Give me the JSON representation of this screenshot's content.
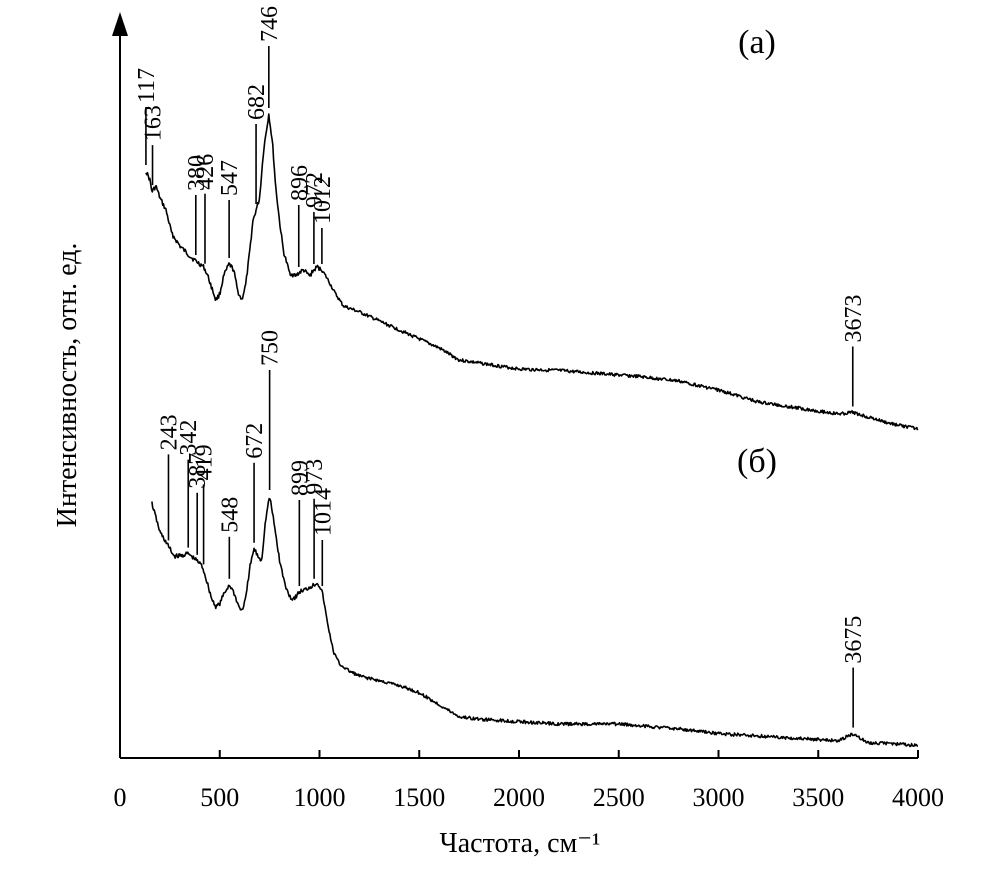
{
  "chart_data": {
    "type": "line",
    "xlabel": "Частота, см⁻¹",
    "ylabel": "Интенсивность, отн. ед.",
    "xlim": [
      0,
      4000
    ],
    "x_ticks": [
      "0",
      "500",
      "1000",
      "1500",
      "2000",
      "2500",
      "3000",
      "3500",
      "4000"
    ],
    "y_tick_labels": false,
    "grid": false,
    "legend": "none",
    "series": [
      {
        "name": "(а)",
        "x": [
          130,
          150,
          160,
          180,
          200,
          230,
          260,
          300,
          330,
          360,
          380,
          400,
          420,
          440,
          460,
          480,
          500,
          520,
          547,
          570,
          590,
          610,
          630,
          650,
          665,
          682,
          700,
          720,
          746,
          765,
          780,
          800,
          820,
          850,
          880,
          896,
          920,
          950,
          972,
          990,
          1012,
          1040,
          1080,
          1120,
          1200,
          1300,
          1400,
          1500,
          1600,
          1700,
          1800,
          1900,
          2000,
          2200,
          2400,
          2600,
          2800,
          3000,
          3200,
          3400,
          3600,
          3673,
          3750,
          3850,
          4000
        ],
        "y": [
          0.93,
          0.9,
          0.86,
          0.88,
          0.84,
          0.8,
          0.72,
          0.68,
          0.66,
          0.64,
          0.63,
          0.62,
          0.61,
          0.58,
          0.54,
          0.5,
          0.52,
          0.58,
          0.62,
          0.6,
          0.53,
          0.5,
          0.55,
          0.66,
          0.76,
          0.8,
          0.84,
          1.0,
          1.12,
          1.02,
          0.88,
          0.76,
          0.66,
          0.59,
          0.58,
          0.59,
          0.6,
          0.58,
          0.6,
          0.61,
          0.6,
          0.57,
          0.52,
          0.48,
          0.46,
          0.43,
          0.4,
          0.37,
          0.34,
          0.3,
          0.29,
          0.28,
          0.27,
          0.265,
          0.255,
          0.245,
          0.23,
          0.2,
          0.16,
          0.14,
          0.12,
          0.125,
          0.11,
          0.09,
          0.07
        ]
      },
      {
        "name": "(б)",
        "x": [
          160,
          180,
          200,
          243,
          270,
          300,
          342,
          370,
          387,
          410,
          419,
          440,
          460,
          480,
          500,
          520,
          548,
          570,
          590,
          610,
          630,
          650,
          672,
          690,
          710,
          730,
          750,
          770,
          800,
          830,
          860,
          880,
          899,
          930,
          950,
          973,
          990,
          1014,
          1040,
          1070,
          1100,
          1150,
          1200,
          1300,
          1400,
          1500,
          1600,
          1700,
          1800,
          2000,
          2200,
          2500,
          2800,
          3000,
          3200,
          3400,
          3600,
          3675,
          3750,
          3850,
          4000
        ],
        "y": [
          0.62,
          0.56,
          0.5,
          0.44,
          0.4,
          0.4,
          0.41,
          0.39,
          0.38,
          0.36,
          0.34,
          0.28,
          0.22,
          0.19,
          0.2,
          0.24,
          0.28,
          0.25,
          0.2,
          0.17,
          0.22,
          0.35,
          0.43,
          0.4,
          0.38,
          0.55,
          0.65,
          0.55,
          0.38,
          0.27,
          0.22,
          0.23,
          0.25,
          0.26,
          0.27,
          0.28,
          0.29,
          0.25,
          0.12,
          0.0,
          -0.05,
          -0.08,
          -0.1,
          -0.12,
          -0.14,
          -0.17,
          -0.22,
          -0.27,
          -0.28,
          -0.29,
          -0.3,
          -0.3,
          -0.32,
          -0.34,
          -0.35,
          -0.36,
          -0.37,
          -0.34,
          -0.38,
          -0.38,
          -0.39
        ]
      }
    ],
    "peaks": [
      {
        "series": 0,
        "label": "117",
        "x": 130
      },
      {
        "series": 0,
        "label": "163",
        "x": 163
      },
      {
        "series": 0,
        "label": "380",
        "x": 380
      },
      {
        "series": 0,
        "label": "426",
        "x": 426
      },
      {
        "series": 0,
        "label": "547",
        "x": 547
      },
      {
        "series": 0,
        "label": "682",
        "x": 682
      },
      {
        "series": 0,
        "label": "746",
        "x": 746
      },
      {
        "series": 0,
        "label": "896",
        "x": 896
      },
      {
        "series": 0,
        "label": "972",
        "x": 972
      },
      {
        "series": 0,
        "label": "1012",
        "x": 1012
      },
      {
        "series": 0,
        "label": "3673",
        "x": 3673
      },
      {
        "series": 1,
        "label": "243",
        "x": 243
      },
      {
        "series": 1,
        "label": "342",
        "x": 342
      },
      {
        "series": 1,
        "label": "387",
        "x": 387
      },
      {
        "series": 1,
        "label": "419",
        "x": 419
      },
      {
        "series": 1,
        "label": "548",
        "x": 548
      },
      {
        "series": 1,
        "label": "672",
        "x": 672
      },
      {
        "series": 1,
        "label": "750",
        "x": 750
      },
      {
        "series": 1,
        "label": "899",
        "x": 899
      },
      {
        "series": 1,
        "label": "973",
        "x": 973
      },
      {
        "series": 1,
        "label": "1014",
        "x": 1014
      },
      {
        "series": 1,
        "label": "3675",
        "x": 3675
      }
    ]
  }
}
